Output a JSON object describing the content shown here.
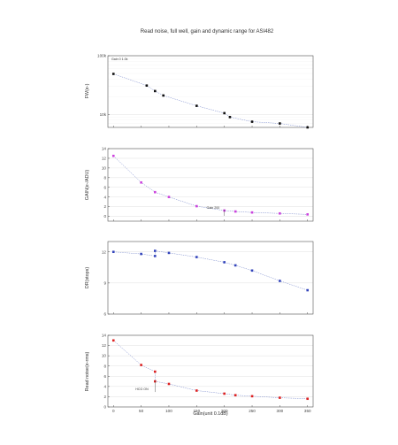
{
  "title": "Read noise, full well, gain and dynamic range for ASI482",
  "xlabel": "Gain(unit 0.1dB)",
  "colors": {
    "fw": "#111111",
    "gain": "#cc44dd",
    "dr": "#3344bb",
    "rn": "#dd2222",
    "fit": "#7788cc",
    "grid": "#e6e6e6"
  },
  "chart_data": [
    {
      "type": "scatter",
      "ylabel": "FW(e-)",
      "yscale": "log",
      "ylim": [
        6000,
        100000
      ],
      "ytick_values": [
        10000,
        100000
      ],
      "ytick_labels": [
        "10k",
        "100k"
      ],
      "xlim": [
        -10,
        360
      ],
      "xticks": [
        0,
        50,
        100,
        150,
        200,
        250,
        300,
        350
      ],
      "annotations": [
        "Gain 0 1.0k"
      ],
      "series": [
        {
          "x": [
            0,
            60,
            75,
            90,
            150,
            200,
            210,
            250,
            300,
            350
          ],
          "y": [
            49000,
            31000,
            25000,
            21000,
            14000,
            10500,
            9000,
            7500,
            7000,
            6000
          ]
        }
      ]
    },
    {
      "type": "scatter",
      "ylabel": "GAIN(e-/ADU)",
      "ylim": [
        -1,
        14
      ],
      "yticks": [
        0,
        2,
        4,
        6,
        8,
        10,
        12,
        14
      ],
      "xlim": [
        -10,
        360
      ],
      "xticks": [
        0,
        50,
        100,
        150,
        200,
        250,
        300,
        350
      ],
      "annotations": [
        "Gain 200"
      ],
      "series": [
        {
          "x": [
            0,
            50,
            75,
            100,
            150,
            200,
            220,
            250,
            300,
            350
          ],
          "y": [
            12.5,
            7.0,
            5.0,
            4.0,
            2.1,
            1.2,
            1.0,
            0.8,
            0.6,
            0.4
          ]
        }
      ]
    },
    {
      "type": "scatter",
      "ylabel": "DR(stops)",
      "ylim": [
        6,
        13
      ],
      "yticks": [
        6,
        9,
        12
      ],
      "xlim": [
        -10,
        360
      ],
      "xticks": [
        0,
        50,
        100,
        150,
        200,
        250,
        300,
        350
      ],
      "series": [
        {
          "x": [
            0,
            50,
            75,
            75,
            100,
            150,
            200,
            220,
            250,
            300,
            350
          ],
          "y": [
            12.0,
            11.8,
            11.6,
            12.1,
            11.9,
            11.5,
            11.0,
            10.7,
            10.2,
            9.2,
            8.3
          ]
        }
      ]
    },
    {
      "type": "scatter",
      "ylabel": "Read noise(e-rms)",
      "ylim": [
        0,
        14
      ],
      "yticks": [
        0,
        2,
        4,
        6,
        8,
        10,
        12,
        14
      ],
      "xlim": [
        -10,
        360
      ],
      "xticks": [
        0,
        50,
        100,
        150,
        200,
        250,
        300,
        350
      ],
      "xtick_labels": [
        "0",
        "50",
        "100",
        "150",
        "200",
        "250",
        "300",
        "350"
      ],
      "annotations": [
        "HCG ON"
      ],
      "series": [
        {
          "x": [
            0,
            50,
            75,
            75,
            100,
            150,
            200,
            220,
            250,
            300,
            350
          ],
          "y": [
            13.0,
            8.2,
            6.9,
            5.0,
            4.5,
            3.2,
            2.6,
            2.3,
            2.1,
            1.8,
            1.6
          ]
        }
      ]
    }
  ]
}
